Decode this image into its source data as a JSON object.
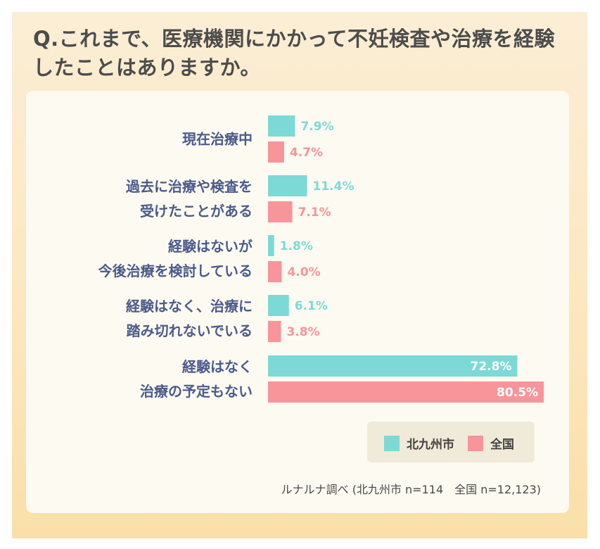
{
  "question": "Q.これまで、医療機関にかかって不妊検査や治療を経験したことはありますか。",
  "legend": {
    "items": [
      {
        "label": "北九州市",
        "color": "#7dd9d5"
      },
      {
        "label": "全国",
        "color": "#f7959a"
      }
    ]
  },
  "source": "ルナルナ調べ (北九州市 n=114　全国 n=12,123)",
  "chart_data": {
    "type": "bar",
    "orientation": "horizontal",
    "categories": [
      [
        "現在治療中"
      ],
      [
        "過去に治療や検査を",
        "受けたことがある"
      ],
      [
        "経験はないが",
        "今後治療を検討している"
      ],
      [
        "経験はなく、治療に",
        "踏み切れないでいる"
      ],
      [
        "経験はなく",
        "治療の予定もない"
      ]
    ],
    "series": [
      {
        "name": "北九州市",
        "color": "#7dd9d5",
        "values": [
          7.9,
          11.4,
          1.8,
          6.1,
          72.8
        ],
        "labels": [
          "7.9%",
          "11.4%",
          "1.8%",
          "6.1%",
          "72.8%"
        ]
      },
      {
        "name": "全国",
        "color": "#f7959a",
        "values": [
          4.7,
          7.1,
          4.0,
          3.8,
          80.5
        ],
        "labels": [
          "4.7%",
          "7.1%",
          "4.0%",
          "3.8%",
          "80.5%"
        ]
      }
    ],
    "unit": "%",
    "xlim": [
      0,
      80.5
    ],
    "grid": false,
    "legend_position": "bottom-right"
  }
}
